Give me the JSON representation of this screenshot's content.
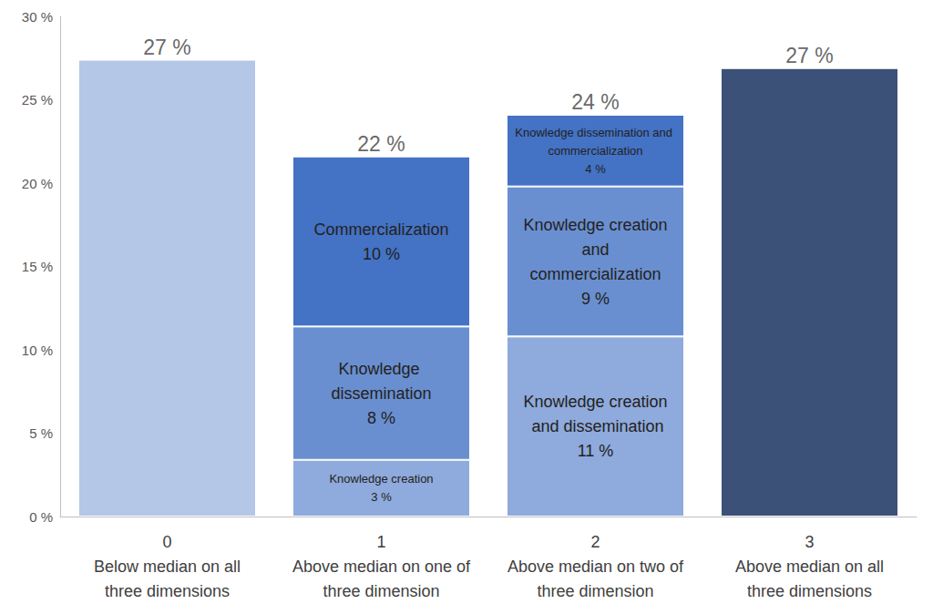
{
  "chart_data": {
    "type": "bar",
    "stacked": true,
    "data_labels": true,
    "grid": false,
    "categories": [
      "0\nBelow median on all\nthree dimensions",
      "1\nAbove median on one of\nthree dimension",
      "2\nAbove median on two of\nthree dimension",
      "3\nAbove median on all\nthree dimensions"
    ],
    "ylim": [
      0,
      30
    ],
    "yticks": [
      {
        "value": 0,
        "label": "0 %"
      },
      {
        "value": 5,
        "label": "5 %"
      },
      {
        "value": 10,
        "label": "10 %"
      },
      {
        "value": 15,
        "label": "15 %"
      },
      {
        "value": 20,
        "label": "20 %"
      },
      {
        "value": 25,
        "label": "25 %"
      },
      {
        "value": 30,
        "label": "30 %"
      }
    ],
    "series": [
      {
        "color": "#b4c7e7",
        "values": [
          27.4,
          null,
          null,
          null
        ]
      },
      {
        "name": "Knowledge creation",
        "color": "#8faadc",
        "values": [
          null,
          3.4,
          null,
          null
        ],
        "value_labels": [
          null,
          "3 %",
          null,
          null
        ]
      },
      {
        "name": "Knowledge dissemination",
        "color": "#6a8fd0",
        "values": [
          null,
          8,
          null,
          null
        ],
        "value_labels": [
          null,
          "8 %",
          null,
          null
        ]
      },
      {
        "name": "Commercialization",
        "color": "#4472c4",
        "values": [
          null,
          10.2,
          null,
          null
        ],
        "value_labels": [
          null,
          "10 %",
          null,
          null
        ]
      },
      {
        "name": "Knowledge creation and dissemination",
        "color": "#8faadc",
        "values": [
          null,
          null,
          10.8,
          null
        ],
        "value_labels": [
          null,
          null,
          "11 %",
          null
        ]
      },
      {
        "name": "Knowledge creation and commercialization",
        "color": "#6a8fd0",
        "values": [
          null,
          null,
          9,
          null
        ],
        "value_labels": [
          null,
          null,
          "9 %",
          null
        ]
      },
      {
        "name": "Knowledge dissemination and commercialization",
        "color": "#4472c4",
        "values": [
          null,
          null,
          4.3,
          null
        ],
        "value_labels": [
          null,
          null,
          "4 %",
          null
        ]
      },
      {
        "color": "#3c5178",
        "values": [
          null,
          null,
          null,
          26.9
        ]
      }
    ],
    "totals": [
      27.4,
      21.6,
      24.1,
      26.9
    ],
    "total_labels": [
      "27 %",
      "22 %",
      "24 %",
      "27 %"
    ]
  }
}
